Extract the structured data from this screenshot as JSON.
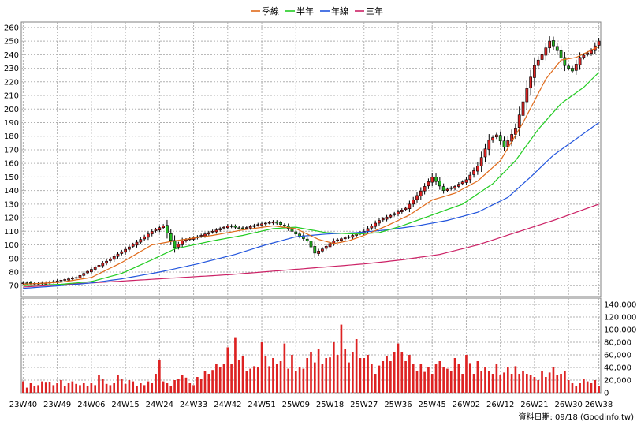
{
  "chart_data": {
    "type": "candlestick",
    "legend": [
      {
        "name": "季線",
        "color": "#e06a1a"
      },
      {
        "name": "半年",
        "color": "#22cc22"
      },
      {
        "name": "年線",
        "color": "#2255dd"
      },
      {
        "name": "三年",
        "color": "#cc2266"
      }
    ],
    "legend_position": "top-center",
    "price_axis": {
      "min": 62,
      "max": 264,
      "ticks": [
        70,
        80,
        90,
        100,
        110,
        120,
        130,
        140,
        150,
        160,
        170,
        180,
        190,
        200,
        210,
        220,
        230,
        240,
        250,
        260
      ],
      "position": "left"
    },
    "volume_axis": {
      "min": 0,
      "max": 150000,
      "ticks": [
        0,
        20000,
        40000,
        60000,
        80000,
        100000,
        120000,
        140000
      ],
      "tick_labels": [
        "0",
        "20,000",
        "40,000",
        "60,000",
        "80,000",
        "100,000",
        "120,000",
        "140,000"
      ],
      "position": "right"
    },
    "x_tick_labels": [
      "23W40",
      "23W49",
      "24W06",
      "24W15",
      "24W24",
      "24W33",
      "24W42",
      "24W51",
      "25W09",
      "25W18",
      "25W27",
      "25W36",
      "25W45",
      "26W02",
      "26W12",
      "26W21",
      "26W30",
      "26W38"
    ],
    "x_tick_week_index": [
      0,
      9,
      18,
      27,
      36,
      45,
      54,
      63,
      72,
      81,
      90,
      99,
      108,
      117,
      126,
      135,
      144,
      152
    ],
    "grid": true,
    "up_color": "#dd2222",
    "down_color": "#22bb22",
    "volume_color": "#dd2222",
    "anchors": {
      "close": [
        [
          0,
          72
        ],
        [
          5,
          71.5
        ],
        [
          10,
          74
        ],
        [
          14,
          76
        ],
        [
          18,
          82
        ],
        [
          22,
          88
        ],
        [
          26,
          95
        ],
        [
          30,
          102
        ],
        [
          34,
          110
        ],
        [
          37,
          114
        ],
        [
          40,
          98
        ],
        [
          42,
          103
        ],
        [
          46,
          106
        ],
        [
          50,
          110
        ],
        [
          54,
          114
        ],
        [
          58,
          112
        ],
        [
          62,
          115
        ],
        [
          66,
          117
        ],
        [
          69,
          114
        ],
        [
          72,
          108
        ],
        [
          75,
          103
        ],
        [
          77,
          94
        ],
        [
          79,
          97
        ],
        [
          82,
          103
        ],
        [
          86,
          106
        ],
        [
          90,
          110
        ],
        [
          94,
          118
        ],
        [
          98,
          123
        ],
        [
          101,
          127
        ],
        [
          103,
          133
        ],
        [
          106,
          143
        ],
        [
          108,
          150
        ],
        [
          111,
          140
        ],
        [
          114,
          143
        ],
        [
          117,
          148
        ],
        [
          120,
          158
        ],
        [
          123,
          177
        ],
        [
          125,
          181
        ],
        [
          127,
          172
        ],
        [
          130,
          186
        ],
        [
          133,
          215
        ],
        [
          135,
          232
        ],
        [
          137,
          240
        ],
        [
          139,
          250
        ],
        [
          141,
          243
        ],
        [
          143,
          232
        ],
        [
          145,
          228
        ],
        [
          147,
          238
        ],
        [
          150,
          243
        ],
        [
          152,
          250
        ]
      ],
      "ma_quarter": [
        [
          0,
          71
        ],
        [
          10,
          72.5
        ],
        [
          18,
          76
        ],
        [
          26,
          87
        ],
        [
          34,
          100
        ],
        [
          40,
          103
        ],
        [
          50,
          107
        ],
        [
          58,
          111
        ],
        [
          66,
          114
        ],
        [
          72,
          112
        ],
        [
          78,
          104
        ],
        [
          82,
          101
        ],
        [
          86,
          103
        ],
        [
          90,
          107
        ],
        [
          96,
          114
        ],
        [
          102,
          122
        ],
        [
          108,
          133
        ],
        [
          114,
          138
        ],
        [
          120,
          147
        ],
        [
          126,
          162
        ],
        [
          132,
          190
        ],
        [
          138,
          222
        ],
        [
          142,
          236
        ],
        [
          146,
          238
        ],
        [
          152,
          246
        ]
      ],
      "ma_half": [
        [
          0,
          70
        ],
        [
          10,
          71
        ],
        [
          18,
          73
        ],
        [
          26,
          79
        ],
        [
          34,
          89
        ],
        [
          40,
          97
        ],
        [
          50,
          103
        ],
        [
          58,
          107
        ],
        [
          66,
          112
        ],
        [
          72,
          113
        ],
        [
          80,
          109
        ],
        [
          88,
          108
        ],
        [
          94,
          109
        ],
        [
          100,
          114
        ],
        [
          108,
          122
        ],
        [
          116,
          130
        ],
        [
          124,
          145
        ],
        [
          130,
          162
        ],
        [
          136,
          185
        ],
        [
          142,
          204
        ],
        [
          148,
          216
        ],
        [
          152,
          227
        ]
      ],
      "ma_year": [
        [
          0,
          68
        ],
        [
          10,
          70
        ],
        [
          18,
          72
        ],
        [
          26,
          75
        ],
        [
          36,
          80
        ],
        [
          46,
          86
        ],
        [
          56,
          93
        ],
        [
          64,
          100
        ],
        [
          72,
          106
        ],
        [
          80,
          108
        ],
        [
          88,
          109
        ],
        [
          96,
          111
        ],
        [
          104,
          114
        ],
        [
          112,
          118
        ],
        [
          120,
          124
        ],
        [
          128,
          135
        ],
        [
          134,
          150
        ],
        [
          140,
          166
        ],
        [
          146,
          178
        ],
        [
          152,
          190
        ]
      ],
      "ma_3year": [
        [
          0,
          69
        ],
        [
          18,
          72
        ],
        [
          36,
          75
        ],
        [
          54,
          78
        ],
        [
          72,
          82
        ],
        [
          90,
          86
        ],
        [
          100,
          89
        ],
        [
          110,
          93
        ],
        [
          120,
          100
        ],
        [
          130,
          109
        ],
        [
          140,
          118
        ],
        [
          152,
          130
        ]
      ]
    },
    "volume": [
      18000,
      8000,
      15000,
      10000,
      12000,
      18000,
      16000,
      17000,
      12000,
      15000,
      20000,
      10000,
      15000,
      18000,
      14000,
      12000,
      15000,
      10000,
      15000,
      12000,
      28000,
      22000,
      14000,
      12000,
      15000,
      28000,
      22000,
      14000,
      20000,
      18000,
      10000,
      15000,
      12000,
      18000,
      15000,
      30000,
      52000,
      18000,
      15000,
      10000,
      20000,
      22000,
      28000,
      24000,
      15000,
      12000,
      25000,
      22000,
      34000,
      30000,
      36000,
      45000,
      40000,
      45000,
      72000,
      45000,
      88000,
      52000,
      58000,
      35000,
      38000,
      42000,
      40000,
      80000,
      58000,
      42000,
      55000,
      45000,
      50000,
      78000,
      38000,
      60000,
      35000,
      40000,
      38000,
      55000,
      65000,
      48000,
      70000,
      45000,
      55000,
      56000,
      80000,
      60000,
      108000,
      70000,
      48000,
      65000,
      85000,
      55000,
      55000,
      60000,
      45000,
      30000,
      43000,
      50000,
      58000,
      50000,
      65000,
      78000,
      65000,
      50000,
      60000,
      45000,
      35000,
      45000,
      33000,
      40000,
      30000,
      45000,
      50000,
      40000,
      38000,
      35000,
      55000,
      45000,
      30000,
      60000,
      47000,
      30000,
      50000,
      35000,
      40000,
      35000,
      30000,
      45000,
      28000,
      32000,
      40000,
      30000,
      42000,
      30000,
      35000,
      30000,
      28000,
      25000,
      20000,
      35000,
      25000,
      32000,
      40000,
      28000,
      30000,
      35000,
      20000,
      15000,
      10000,
      15000,
      22000,
      18000,
      15000,
      20000,
      10000
    ],
    "xaxis_footer": "資料日期: 09/18  (Goodinfo.tw)"
  }
}
